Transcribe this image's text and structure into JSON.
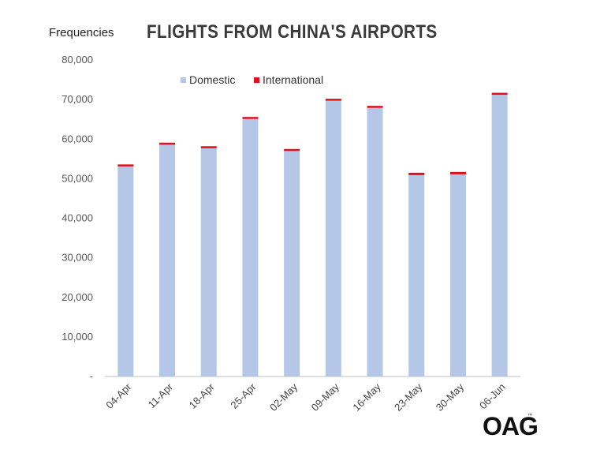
{
  "chart_data": {
    "type": "bar",
    "stacked": true,
    "title": "FLIGHTS FROM CHINA'S AIRPORTS",
    "ylabel": "Frequencies",
    "xlabel": "",
    "categories": [
      "04-Apr",
      "11-Apr",
      "18-Apr",
      "25-Apr",
      "02-May",
      "09-May",
      "16-May",
      "23-May",
      "30-May",
      "06-Jun"
    ],
    "series": [
      {
        "name": "Domestic",
        "color": "#b4c7e7",
        "values": [
          53100,
          58700,
          57800,
          65100,
          57000,
          69700,
          67900,
          50900,
          51100,
          71200
        ]
      },
      {
        "name": "International",
        "color": "#e0101a",
        "values": [
          500,
          400,
          400,
          500,
          500,
          500,
          500,
          600,
          600,
          500
        ]
      }
    ],
    "ylim": [
      0,
      80000
    ],
    "yticks": [
      "-",
      "10,000",
      "20,000",
      "30,000",
      "40,000",
      "50,000",
      "60,000",
      "70,000",
      "80,000"
    ],
    "legend_position": "top-left",
    "grid": false
  },
  "logo_text": "OAG",
  "logo_mark": "™"
}
